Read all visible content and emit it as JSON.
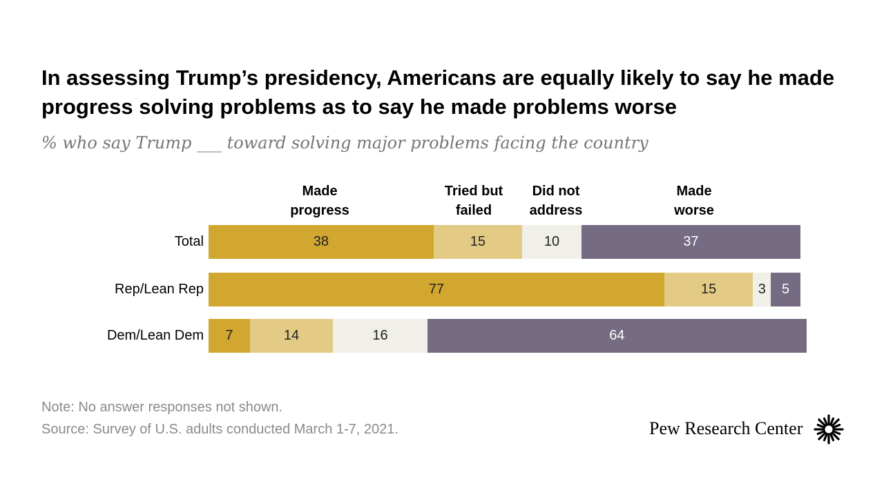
{
  "title": "In assessing Trump’s presidency, Americans are equally likely to say he made progress solving problems as to say he made problems worse",
  "subtitle": "% who say Trump ___ toward solving major problems facing the country",
  "colors": {
    "made_progress": "#D1A730",
    "tried_failed": "#E3CB86",
    "did_not_address": "#F0EFE8",
    "made_worse": "#756B82",
    "label_on_dark": "#ffffff",
    "label_on_light": "#222222"
  },
  "chart_data": {
    "type": "bar",
    "orientation": "horizontal",
    "stacked": true,
    "categories": [
      "Total",
      "Rep/Lean Rep",
      "Dem/Lean Dem"
    ],
    "series": [
      {
        "name": "Made progress",
        "values": [
          38,
          77,
          7
        ]
      },
      {
        "name": "Tried but failed",
        "values": [
          15,
          15,
          14
        ]
      },
      {
        "name": "Did not address",
        "values": [
          10,
          3,
          16
        ]
      },
      {
        "name": "Made worse",
        "values": [
          37,
          5,
          64
        ]
      }
    ]
  },
  "column_headers": [
    {
      "line1": "Made",
      "line2": "progress"
    },
    {
      "line1": "Tried but",
      "line2": "failed"
    },
    {
      "line1": "Did not",
      "line2": "address"
    },
    {
      "line1": "Made",
      "line2": "worse"
    }
  ],
  "note": "Note: No answer responses not shown.",
  "source": "Source: Survey of U.S. adults conducted March 1-7, 2021.",
  "logo": {
    "text": "Pew Research Center",
    "icon": "pew-sunburst-icon"
  }
}
